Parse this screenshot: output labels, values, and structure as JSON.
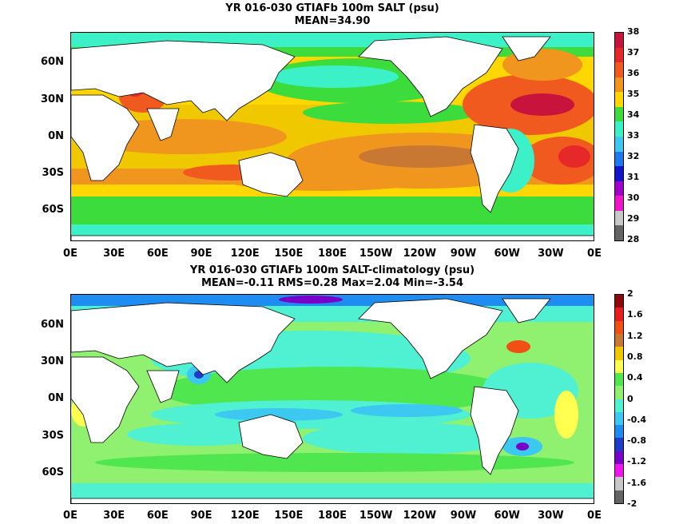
{
  "panel1": {
    "title_line1": "YR 016-030 GTIAFb 100m SALT (psu)",
    "title_line2": "MEAN=34.90",
    "colorbar_labels": [
      "38",
      "37",
      "36",
      "35",
      "34",
      "33",
      "32",
      "31",
      "30",
      "29",
      "28"
    ],
    "colors": [
      "#c8143c",
      "#e62828",
      "#f05a1e",
      "#f0961e",
      "#ffd700",
      "#3cdc3c",
      "#3cf0c8",
      "#3cc8f0",
      "#1e78f0",
      "#1414c8",
      "#a000c8",
      "#f014c8",
      "#c8c8c8",
      "#646464"
    ]
  },
  "panel2": {
    "title_line1": "YR 016-030 GTIAFb 100m SALT-climatology (psu)",
    "title_line2": "MEAN=-0.11   RMS=0.28   Max=2.04   Min=-3.54",
    "colorbar_labels": [
      "2",
      "1.6",
      "1.2",
      "0.8",
      "0.4",
      "0",
      "-0.4",
      "-0.8",
      "-1.2",
      "-1.6",
      "-2"
    ],
    "colors": [
      "#8c0a0a",
      "#e61e1e",
      "#f05014",
      "#c87832",
      "#f0c800",
      "#ffff50",
      "#50e650",
      "#90f070",
      "#50f0d2",
      "#3cc8f0",
      "#1e8cf0",
      "#1e3cc8",
      "#7800c8",
      "#f014f0",
      "#c8c8c8",
      "#646464"
    ]
  },
  "y_axis_labels": [
    "60N",
    "30N",
    "0N",
    "30S",
    "60S"
  ],
  "x_axis_labels": [
    "0E",
    "30E",
    "60E",
    "90E",
    "120E",
    "150E",
    "180E",
    "150W",
    "120W",
    "90W",
    "60W",
    "30W",
    "0E"
  ]
}
